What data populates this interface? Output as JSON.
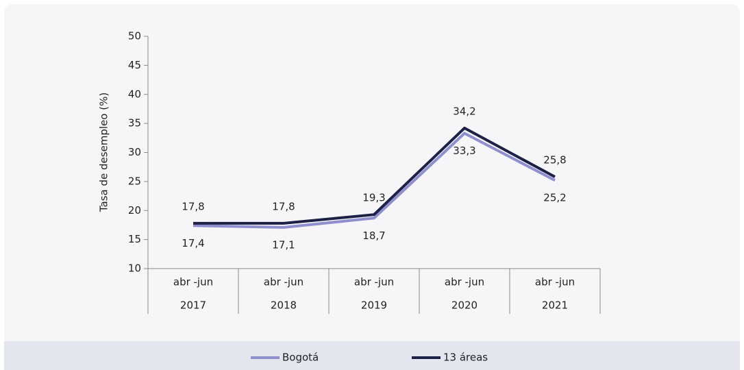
{
  "chart_data": {
    "type": "line",
    "y_label": "Tasa de desempleo (%)",
    "categories": [
      [
        "abr -jun",
        "2017"
      ],
      [
        "abr -jun",
        "2018"
      ],
      [
        "abr -jun",
        "2019"
      ],
      [
        "abr -jun",
        "2020"
      ],
      [
        "abr -jun",
        "2021"
      ]
    ],
    "series": [
      {
        "name": "Bogotá",
        "color": "#8e8fcc",
        "values": [
          17.4,
          17.1,
          18.7,
          33.3,
          25.2
        ],
        "value_labels": [
          "17,4",
          "17,1",
          "18,7",
          "33,3",
          "25,2"
        ],
        "label_position": "below"
      },
      {
        "name": "13 áreas",
        "color": "#1c2145",
        "values": [
          17.8,
          17.8,
          19.3,
          34.2,
          25.8
        ],
        "value_labels": [
          "17,8",
          "17,8",
          "19,3",
          "34,2",
          "25,8"
        ],
        "label_position": "above"
      }
    ],
    "ylim": [
      10,
      50
    ],
    "yticks": [
      10,
      15,
      20,
      25,
      30,
      35,
      40,
      45,
      50
    ],
    "legend": "bottom"
  }
}
